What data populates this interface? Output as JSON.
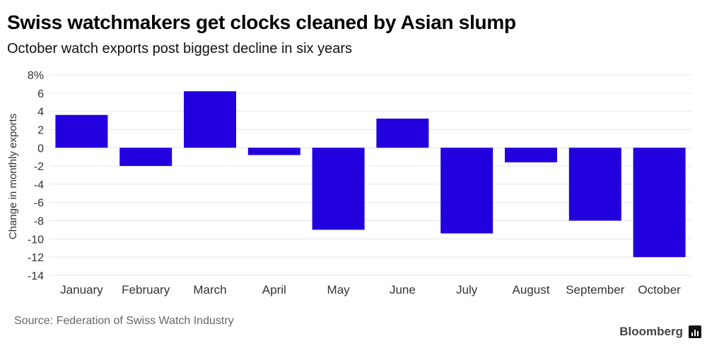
{
  "header": {
    "title": "Swiss watchmakers get clocks cleaned by Asian slump",
    "subtitle": "October watch exports post biggest decline in six years"
  },
  "footer": {
    "source": "Source: Federation of Swiss Watch Industry",
    "brand": "Bloomberg"
  },
  "colors": {
    "bar": "#2200dd",
    "grid": "#e6e6e6",
    "tick_text": "#333333"
  },
  "chart_data": {
    "type": "bar",
    "categories": [
      "January",
      "February",
      "March",
      "April",
      "May",
      "June",
      "July",
      "August",
      "September",
      "October"
    ],
    "values": [
      3.6,
      -2.0,
      6.2,
      -0.8,
      -9.0,
      3.2,
      -9.4,
      -1.6,
      -8.0,
      -12.0
    ],
    "ylabel": "Change in monthly exports",
    "ylim": [
      -14,
      8
    ],
    "yticks": [
      8,
      6,
      4,
      2,
      0,
      -2,
      -4,
      -6,
      -8,
      -10,
      -12,
      -14
    ],
    "ytick_labels": [
      "8%",
      "6",
      "4",
      "2",
      "0",
      "-2",
      "-4",
      "-6",
      "-8",
      "-10",
      "-12",
      "-14"
    ],
    "grid": true,
    "legend": "none"
  }
}
